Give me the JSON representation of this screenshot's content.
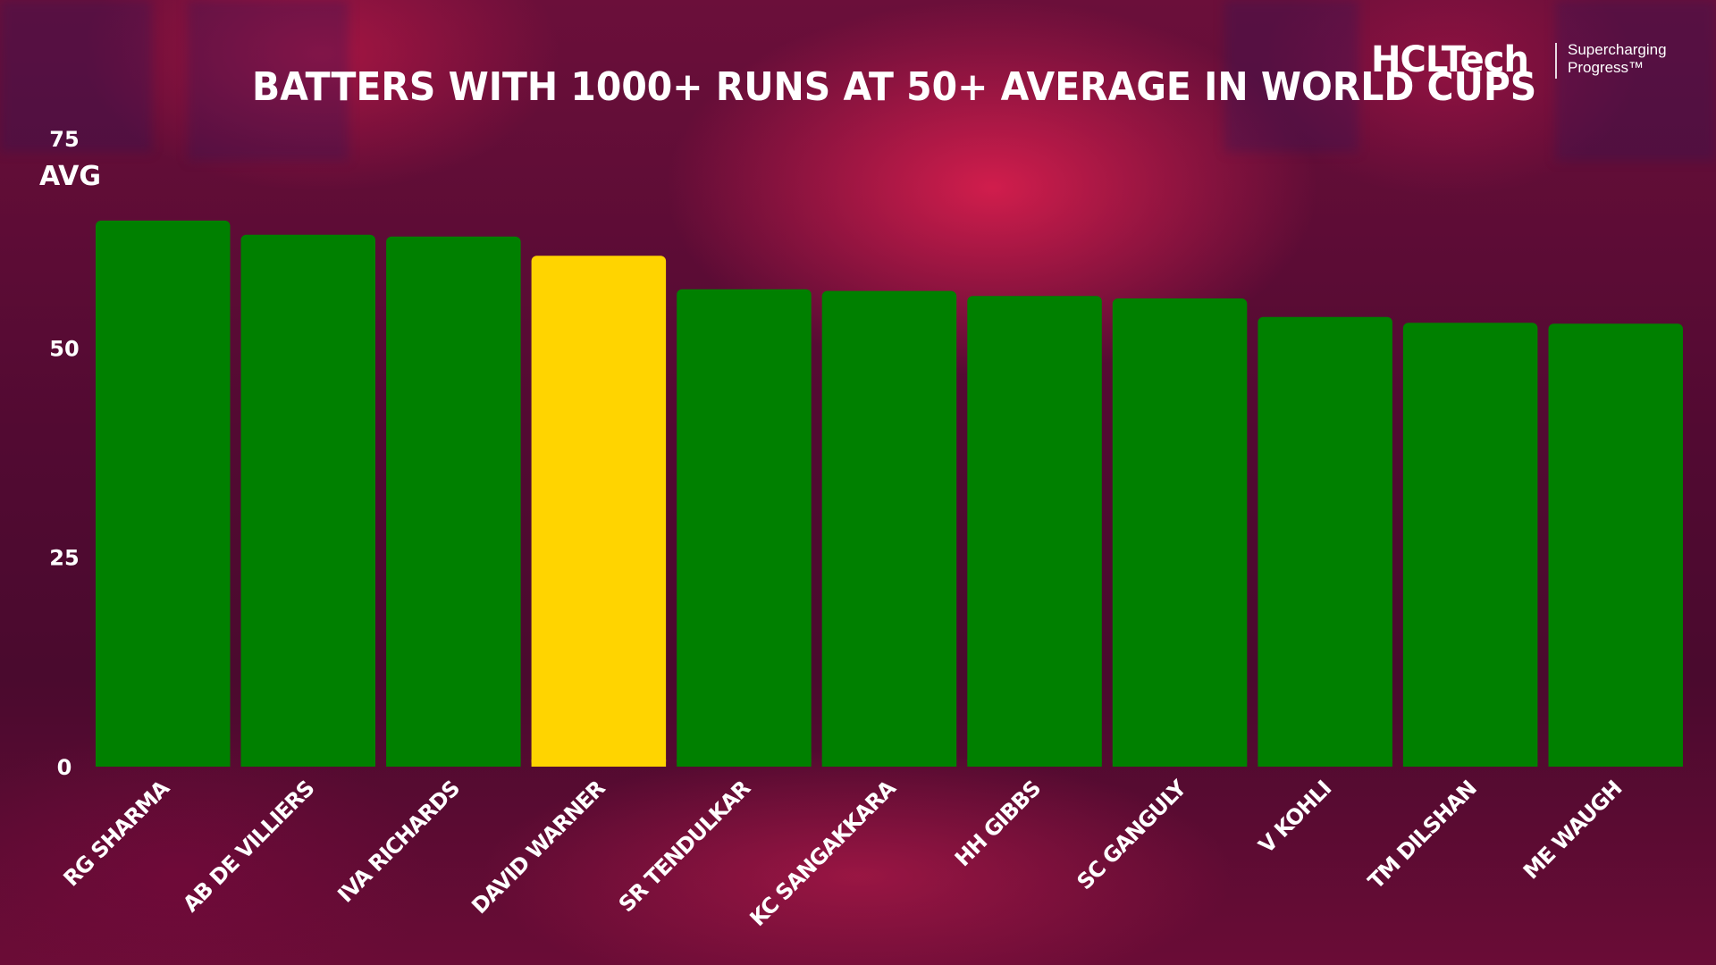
{
  "colors": {
    "bar": "#008000",
    "highlight": "#ffd400",
    "text": "#ffffff",
    "background": "#5a0a2e"
  },
  "brand": {
    "name": "HCLTech",
    "tagline_line1": "Supercharging",
    "tagline_line2": "Progress™"
  },
  "chart_data": {
    "type": "bar",
    "title": "BATTERS WITH 1000+ RUNS AT 50+ AVERAGE IN WORLD CUPS",
    "xlabel": "",
    "ylabel": "AVG",
    "ylim": [
      0,
      75
    ],
    "yticks": [
      0,
      25,
      50,
      75
    ],
    "grid": false,
    "categories": [
      "RG SHARMA",
      "AB DE VILLIERS",
      "IVA RICHARDS",
      "DAVID WARNER",
      "SR TENDULKAR",
      "KC SANGAKKARA",
      "HH GIBBS",
      "SC GANGULY",
      "V KOHLI",
      "TM DILSHAN",
      "ME WAUGH"
    ],
    "values": [
      65.2,
      63.5,
      63.3,
      61.0,
      57.0,
      56.8,
      56.2,
      55.9,
      53.7,
      53.0,
      52.9
    ],
    "highlight_category": "DAVID WARNER"
  }
}
